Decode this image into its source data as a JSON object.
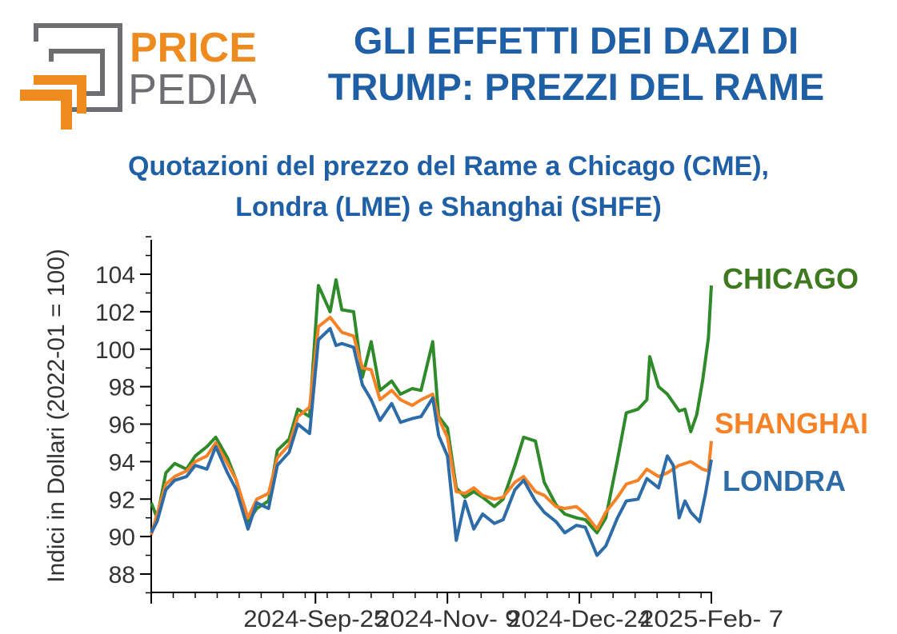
{
  "logo": {
    "word1": "PRICE",
    "word2": "PEDIA",
    "colors": {
      "orange": "#ee8b1f",
      "gray": "#6d6e71"
    }
  },
  "header": {
    "title_line1": "GLI EFFETTI DEI DAZI DI",
    "title_line2": "TRUMP: PREZZI DEL RAME",
    "subtitle_line1": "Quotazioni del prezzo del Rame a Chicago (CME),",
    "subtitle_line2": "Londra (LME) e Shanghai (SHFE)"
  },
  "chart_data": {
    "type": "line",
    "ylabel": "Indici in Dollari (2022-01 = 100)",
    "xlabel": "",
    "ylim": [
      87,
      106
    ],
    "yticks": [
      88,
      90,
      92,
      94,
      96,
      98,
      100,
      102,
      104
    ],
    "xlim": [
      "2024-07-31",
      "2025-02-07"
    ],
    "xticks": [
      {
        "date": "2024-09-25",
        "label": "2024-Sep-25"
      },
      {
        "date": "2024-11-09",
        "label": "2024-Nov- 9"
      },
      {
        "date": "2024-12-24",
        "label": "2024-Dec-24"
      },
      {
        "date": "2025-02-07",
        "label": "2025-Feb- 7"
      }
    ],
    "grid": false,
    "legend": "inline labels at right end of series",
    "series": [
      {
        "name": "CHICAGO",
        "color": "#2f8a2a",
        "label_color": "#3d7a1f",
        "points": [
          [
            "2024-07-31",
            91.8
          ],
          [
            "2024-08-02",
            91.0
          ],
          [
            "2024-08-05",
            93.4
          ],
          [
            "2024-08-08",
            93.9
          ],
          [
            "2024-08-12",
            93.6
          ],
          [
            "2024-08-15",
            94.3
          ],
          [
            "2024-08-19",
            94.8
          ],
          [
            "2024-08-22",
            95.3
          ],
          [
            "2024-08-26",
            94.2
          ],
          [
            "2024-08-29",
            93.0
          ],
          [
            "2024-09-02",
            90.8
          ],
          [
            "2024-09-05",
            91.5
          ],
          [
            "2024-09-09",
            91.9
          ],
          [
            "2024-09-12",
            94.6
          ],
          [
            "2024-09-16",
            95.2
          ],
          [
            "2024-09-19",
            96.8
          ],
          [
            "2024-09-23",
            96.4
          ],
          [
            "2024-09-26",
            103.4
          ],
          [
            "2024-09-30",
            102.0
          ],
          [
            "2024-10-02",
            103.7
          ],
          [
            "2024-10-04",
            102.1
          ],
          [
            "2024-10-08",
            102.0
          ],
          [
            "2024-10-11",
            98.5
          ],
          [
            "2024-10-14",
            100.4
          ],
          [
            "2024-10-17",
            97.8
          ],
          [
            "2024-10-21",
            98.3
          ],
          [
            "2024-10-24",
            97.6
          ],
          [
            "2024-10-28",
            97.9
          ],
          [
            "2024-10-31",
            97.8
          ],
          [
            "2024-11-04",
            100.4
          ],
          [
            "2024-11-06",
            96.4
          ],
          [
            "2024-11-09",
            95.8
          ],
          [
            "2024-11-12",
            92.6
          ],
          [
            "2024-11-15",
            92.1
          ],
          [
            "2024-11-18",
            92.4
          ],
          [
            "2024-11-21",
            92.1
          ],
          [
            "2024-11-25",
            91.6
          ],
          [
            "2024-11-28",
            92.0
          ],
          [
            "2024-12-02",
            93.8
          ],
          [
            "2024-12-05",
            95.3
          ],
          [
            "2024-12-09",
            95.1
          ],
          [
            "2024-12-12",
            92.9
          ],
          [
            "2024-12-16",
            91.7
          ],
          [
            "2024-12-19",
            91.2
          ],
          [
            "2024-12-23",
            91.0
          ],
          [
            "2024-12-26",
            90.9
          ],
          [
            "2024-12-30",
            90.2
          ],
          [
            "2025-01-02",
            91.0
          ],
          [
            "2025-01-06",
            94.1
          ],
          [
            "2025-01-09",
            96.6
          ],
          [
            "2025-01-13",
            96.8
          ],
          [
            "2025-01-16",
            97.3
          ],
          [
            "2025-01-17",
            99.6
          ],
          [
            "2025-01-20",
            98.0
          ],
          [
            "2025-01-23",
            97.6
          ],
          [
            "2025-01-27",
            96.7
          ],
          [
            "2025-01-29",
            96.8
          ],
          [
            "2025-01-31",
            95.6
          ],
          [
            "2025-02-02",
            96.5
          ],
          [
            "2025-02-04",
            98.3
          ],
          [
            "2025-02-06",
            100.6
          ],
          [
            "2025-02-07",
            103.4
          ]
        ]
      },
      {
        "name": "SHANGHAI",
        "color": "#f58226",
        "label_color": "#f58226",
        "points": [
          [
            "2024-07-31",
            90.1
          ],
          [
            "2024-08-02",
            91.2
          ],
          [
            "2024-08-05",
            92.8
          ],
          [
            "2024-08-08",
            93.2
          ],
          [
            "2024-08-12",
            93.5
          ],
          [
            "2024-08-15",
            94.0
          ],
          [
            "2024-08-19",
            94.3
          ],
          [
            "2024-08-22",
            95.0
          ],
          [
            "2024-08-26",
            93.9
          ],
          [
            "2024-08-29",
            93.0
          ],
          [
            "2024-09-02",
            91.0
          ],
          [
            "2024-09-05",
            92.0
          ],
          [
            "2024-09-09",
            92.3
          ],
          [
            "2024-09-12",
            94.2
          ],
          [
            "2024-09-16",
            94.9
          ],
          [
            "2024-09-19",
            96.4
          ],
          [
            "2024-09-23",
            96.9
          ],
          [
            "2024-09-26",
            101.2
          ],
          [
            "2024-09-30",
            101.7
          ],
          [
            "2024-10-02",
            101.3
          ],
          [
            "2024-10-04",
            100.9
          ],
          [
            "2024-10-08",
            100.7
          ],
          [
            "2024-10-11",
            99.0
          ],
          [
            "2024-10-14",
            98.9
          ],
          [
            "2024-10-17",
            97.3
          ],
          [
            "2024-10-21",
            97.8
          ],
          [
            "2024-10-24",
            97.3
          ],
          [
            "2024-10-28",
            97.0
          ],
          [
            "2024-10-31",
            97.3
          ],
          [
            "2024-11-04",
            97.6
          ],
          [
            "2024-11-06",
            96.3
          ],
          [
            "2024-11-09",
            95.3
          ],
          [
            "2024-11-12",
            92.4
          ],
          [
            "2024-11-15",
            92.3
          ],
          [
            "2024-11-18",
            92.6
          ],
          [
            "2024-11-21",
            92.2
          ],
          [
            "2024-11-25",
            92.0
          ],
          [
            "2024-11-28",
            92.1
          ],
          [
            "2024-12-02",
            92.9
          ],
          [
            "2024-12-05",
            93.2
          ],
          [
            "2024-12-09",
            92.4
          ],
          [
            "2024-12-12",
            92.2
          ],
          [
            "2024-12-16",
            91.6
          ],
          [
            "2024-12-19",
            91.5
          ],
          [
            "2024-12-23",
            91.6
          ],
          [
            "2024-12-26",
            91.2
          ],
          [
            "2024-12-30",
            90.4
          ],
          [
            "2025-01-02",
            91.3
          ],
          [
            "2025-01-06",
            92.1
          ],
          [
            "2025-01-09",
            92.8
          ],
          [
            "2025-01-13",
            93.0
          ],
          [
            "2025-01-16",
            93.6
          ],
          [
            "2025-01-20",
            93.2
          ],
          [
            "2025-01-23",
            93.4
          ],
          [
            "2025-01-27",
            93.8
          ],
          [
            "2025-01-31",
            94.0
          ],
          [
            "2025-02-04",
            93.6
          ],
          [
            "2025-02-06",
            93.5
          ],
          [
            "2025-02-07",
            95.1
          ]
        ]
      },
      {
        "name": "LONDRA",
        "color": "#2e6ca8",
        "label_color": "#2e6ca8",
        "points": [
          [
            "2024-07-31",
            90.2
          ],
          [
            "2024-08-02",
            90.8
          ],
          [
            "2024-08-05",
            92.5
          ],
          [
            "2024-08-08",
            93.0
          ],
          [
            "2024-08-12",
            93.2
          ],
          [
            "2024-08-15",
            93.8
          ],
          [
            "2024-08-19",
            93.6
          ],
          [
            "2024-08-22",
            94.8
          ],
          [
            "2024-08-26",
            93.4
          ],
          [
            "2024-08-29",
            92.5
          ],
          [
            "2024-09-02",
            90.4
          ],
          [
            "2024-09-05",
            91.8
          ],
          [
            "2024-09-09",
            91.5
          ],
          [
            "2024-09-12",
            93.8
          ],
          [
            "2024-09-16",
            94.5
          ],
          [
            "2024-09-19",
            96.0
          ],
          [
            "2024-09-23",
            95.5
          ],
          [
            "2024-09-26",
            100.5
          ],
          [
            "2024-09-30",
            101.1
          ],
          [
            "2024-10-02",
            100.2
          ],
          [
            "2024-10-04",
            100.3
          ],
          [
            "2024-10-08",
            100.1
          ],
          [
            "2024-10-11",
            98.1
          ],
          [
            "2024-10-14",
            97.3
          ],
          [
            "2024-10-17",
            96.2
          ],
          [
            "2024-10-21",
            97.1
          ],
          [
            "2024-10-24",
            96.1
          ],
          [
            "2024-10-28",
            96.3
          ],
          [
            "2024-10-31",
            96.4
          ],
          [
            "2024-11-04",
            97.4
          ],
          [
            "2024-11-06",
            95.4
          ],
          [
            "2024-11-09",
            94.3
          ],
          [
            "2024-11-12",
            89.8
          ],
          [
            "2024-11-15",
            91.9
          ],
          [
            "2024-11-18",
            90.4
          ],
          [
            "2024-11-21",
            91.2
          ],
          [
            "2024-11-25",
            90.7
          ],
          [
            "2024-11-28",
            90.9
          ],
          [
            "2024-12-02",
            92.5
          ],
          [
            "2024-12-05",
            93.0
          ],
          [
            "2024-12-09",
            91.9
          ],
          [
            "2024-12-12",
            91.3
          ],
          [
            "2024-12-16",
            90.8
          ],
          [
            "2024-12-19",
            90.2
          ],
          [
            "2024-12-23",
            90.6
          ],
          [
            "2024-12-26",
            90.5
          ],
          [
            "2024-12-30",
            89.0
          ],
          [
            "2025-01-02",
            89.5
          ],
          [
            "2025-01-06",
            91.0
          ],
          [
            "2025-01-09",
            91.9
          ],
          [
            "2025-01-13",
            92.0
          ],
          [
            "2025-01-16",
            93.1
          ],
          [
            "2025-01-20",
            92.6
          ],
          [
            "2025-01-23",
            94.3
          ],
          [
            "2025-01-25",
            93.8
          ],
          [
            "2025-01-27",
            91.0
          ],
          [
            "2025-01-29",
            91.9
          ],
          [
            "2025-01-31",
            91.3
          ],
          [
            "2025-02-03",
            90.8
          ],
          [
            "2025-02-05",
            92.3
          ],
          [
            "2025-02-07",
            94.1
          ]
        ]
      }
    ]
  }
}
